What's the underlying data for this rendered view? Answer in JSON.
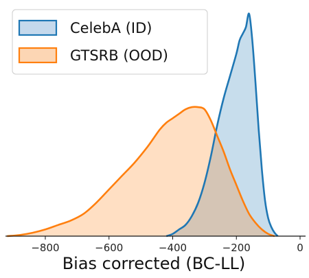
{
  "chart_data": {
    "type": "area",
    "title": "",
    "xlabel": "Bias corrected (BC-LL)",
    "ylabel": "",
    "xlim": [
      -925,
      0
    ],
    "ylim": [
      0,
      1.0
    ],
    "xticks": [
      -800,
      -600,
      -400,
      -200,
      0
    ],
    "xtick_labels": [
      "−800",
      "−600",
      "−400",
      "−200",
      "0"
    ],
    "grid": false,
    "legend_position": "top-left",
    "series": [
      {
        "name": "CelebA (ID)",
        "line_color": "#1f77b4",
        "fill_color": "#c5d9ec",
        "x": [
          -420,
          -400,
          -380,
          -360,
          -340,
          -320,
          -300,
          -280,
          -260,
          -240,
          -220,
          -200,
          -190,
          -180,
          -170,
          -160,
          -150,
          -140,
          -130,
          -120,
          -110,
          -100,
          -90,
          -80,
          -70
        ],
        "y": [
          0.0,
          0.01,
          0.03,
          0.05,
          0.09,
          0.15,
          0.24,
          0.36,
          0.5,
          0.62,
          0.72,
          0.82,
          0.88,
          0.91,
          0.94,
          1.0,
          0.88,
          0.69,
          0.48,
          0.3,
          0.16,
          0.08,
          0.04,
          0.015,
          0.0
        ]
      },
      {
        "name": "GTSRB (OOD)",
        "line_color": "#ff7f0e",
        "fill_color": "#fcd6b4",
        "x": [
          -920,
          -880,
          -840,
          -800,
          -760,
          -720,
          -680,
          -640,
          -600,
          -560,
          -520,
          -480,
          -460,
          -440,
          -420,
          -400,
          -380,
          -360,
          -340,
          -320,
          -300,
          -280,
          -260,
          -240,
          -220,
          -200,
          -180,
          -160,
          -140,
          -120,
          -100,
          -80
        ],
        "y": [
          0.0,
          0.005,
          0.015,
          0.03,
          0.05,
          0.07,
          0.1,
          0.15,
          0.21,
          0.27,
          0.33,
          0.4,
          0.44,
          0.48,
          0.51,
          0.53,
          0.55,
          0.57,
          0.58,
          0.58,
          0.57,
          0.52,
          0.45,
          0.38,
          0.3,
          0.23,
          0.16,
          0.1,
          0.06,
          0.03,
          0.01,
          0.0
        ]
      }
    ]
  }
}
